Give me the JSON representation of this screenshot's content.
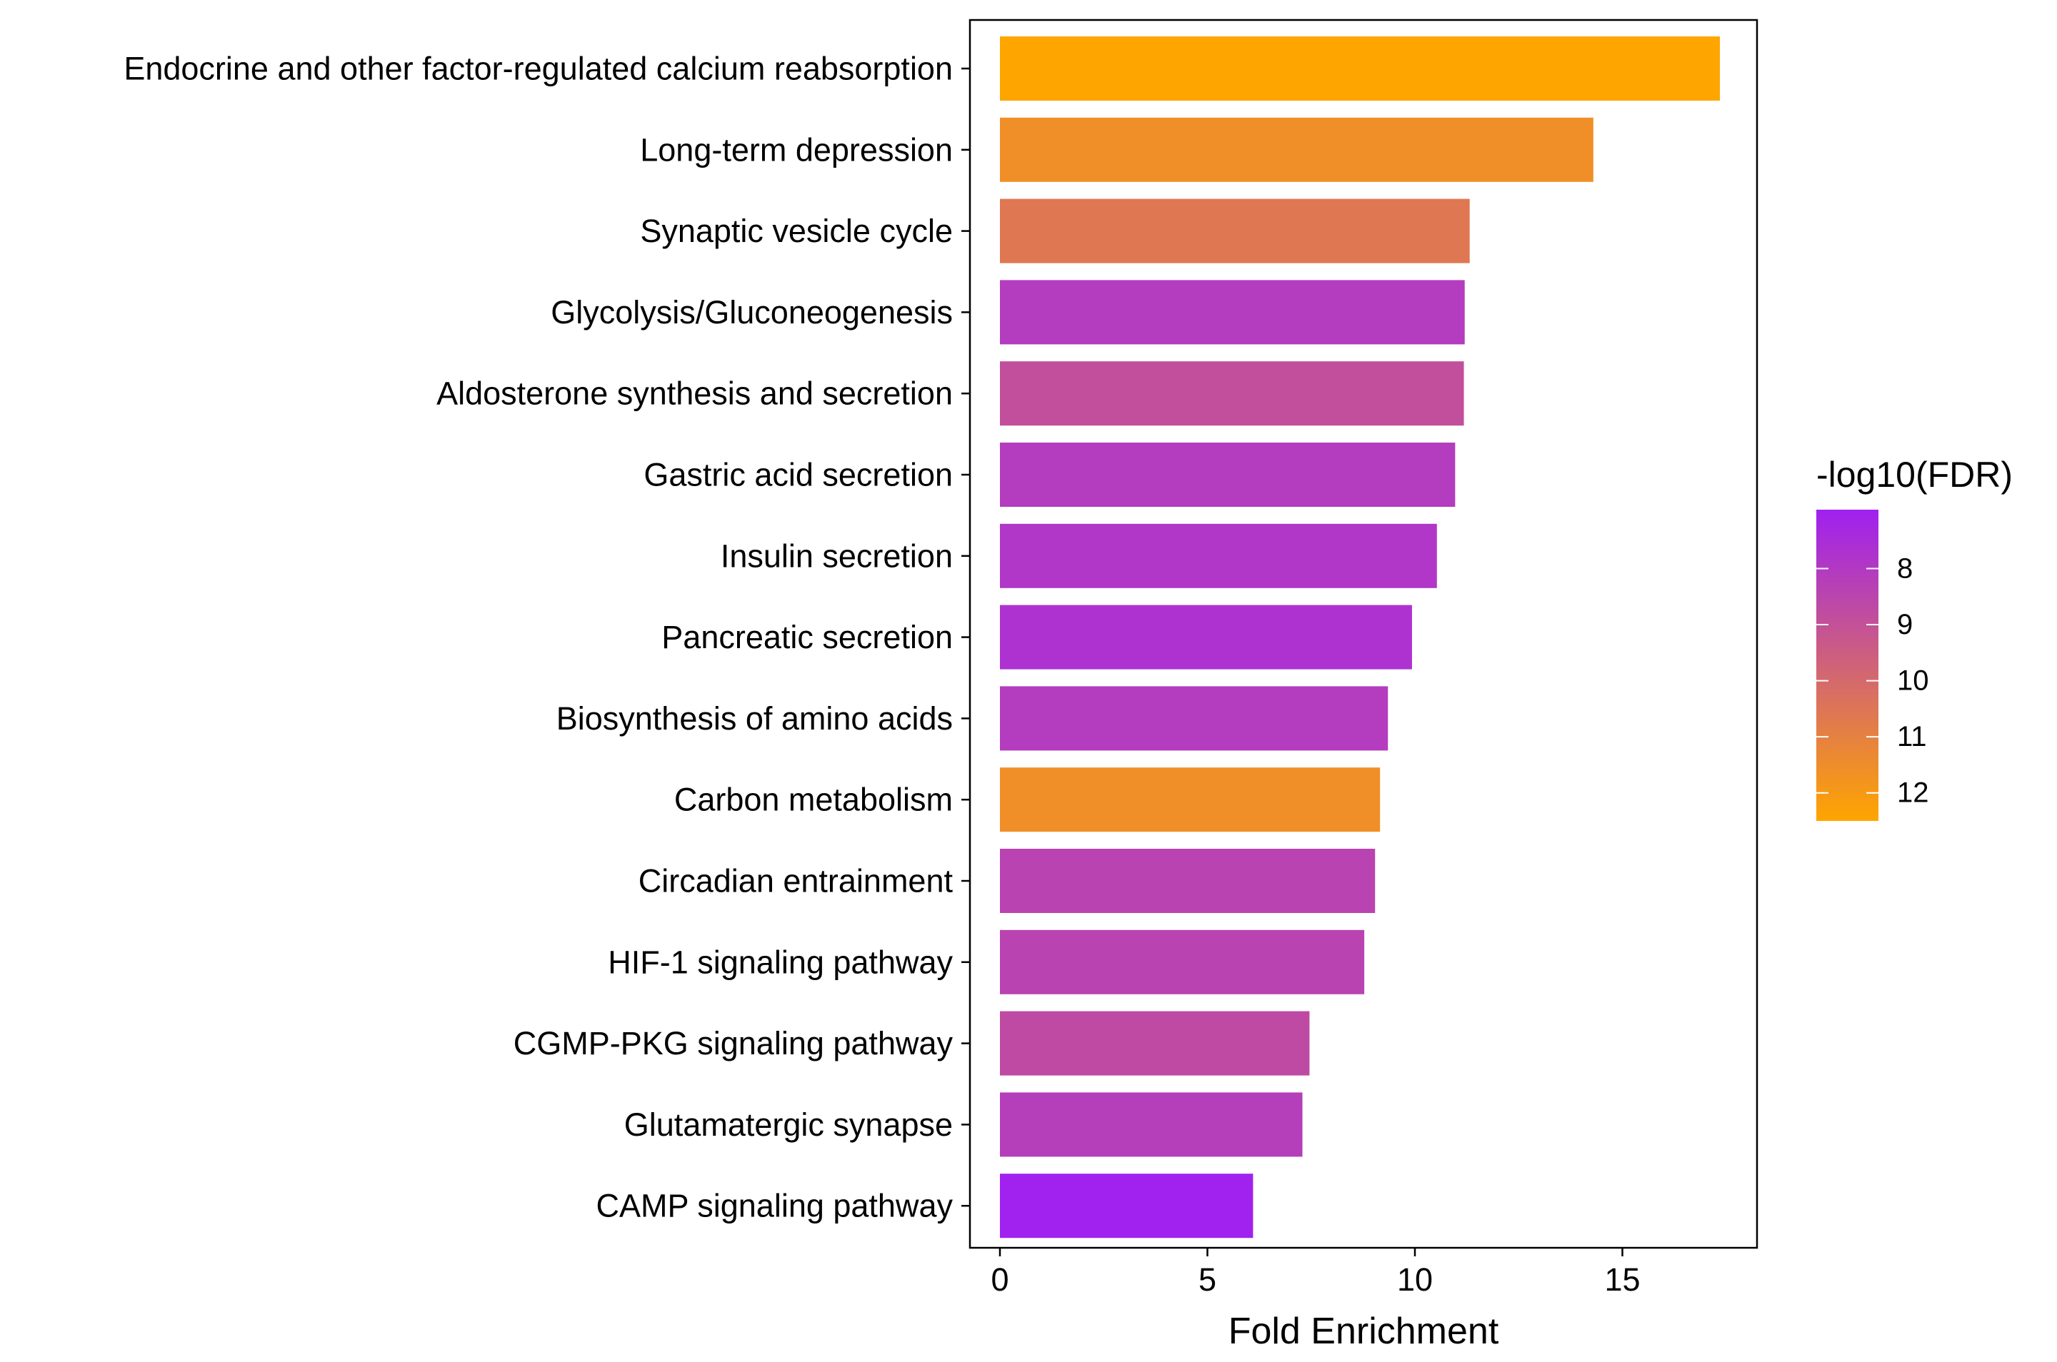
{
  "chart_data": {
    "type": "bar",
    "orientation": "horizontal",
    "categories": [
      "Endocrine and other factor-regulated calcium reabsorption",
      "Long-term depression",
      "Synaptic vesicle cycle",
      "Glycolysis/Gluconeogenesis",
      "Aldosterone synthesis and secretion",
      "Gastric acid secretion",
      "Insulin secretion",
      "Pancreatic secretion",
      "Biosynthesis of amino acids",
      "Carbon metabolism",
      "Circadian entrainment",
      "HIF-1 signaling pathway",
      "CGMP-PKG signaling pathway",
      "Glutamatergic synapse",
      "CAMP signaling pathway"
    ],
    "values": [
      17.35,
      14.3,
      11.32,
      11.2,
      11.18,
      10.97,
      10.53,
      9.93,
      9.35,
      9.16,
      9.04,
      8.78,
      7.46,
      7.29,
      6.1
    ],
    "color_values": [
      12.6,
      11.6,
      10.6,
      8.1,
      8.9,
      8.1,
      7.9,
      7.7,
      8.1,
      11.6,
      8.4,
      8.4,
      8.7,
      8.2,
      7.0
    ],
    "xlabel": "Fold Enrichment",
    "ylabel": "",
    "xlim": [
      -0.85,
      18.1
    ],
    "xticks": [
      0,
      5,
      10,
      15
    ],
    "legend": {
      "title": "-log10(FDR)",
      "ticks": [
        8,
        9,
        10,
        11,
        12
      ],
      "range": [
        6.95,
        12.5
      ],
      "low_color": "#a020f0",
      "high_color": "#ffa500",
      "placement": "right"
    }
  }
}
